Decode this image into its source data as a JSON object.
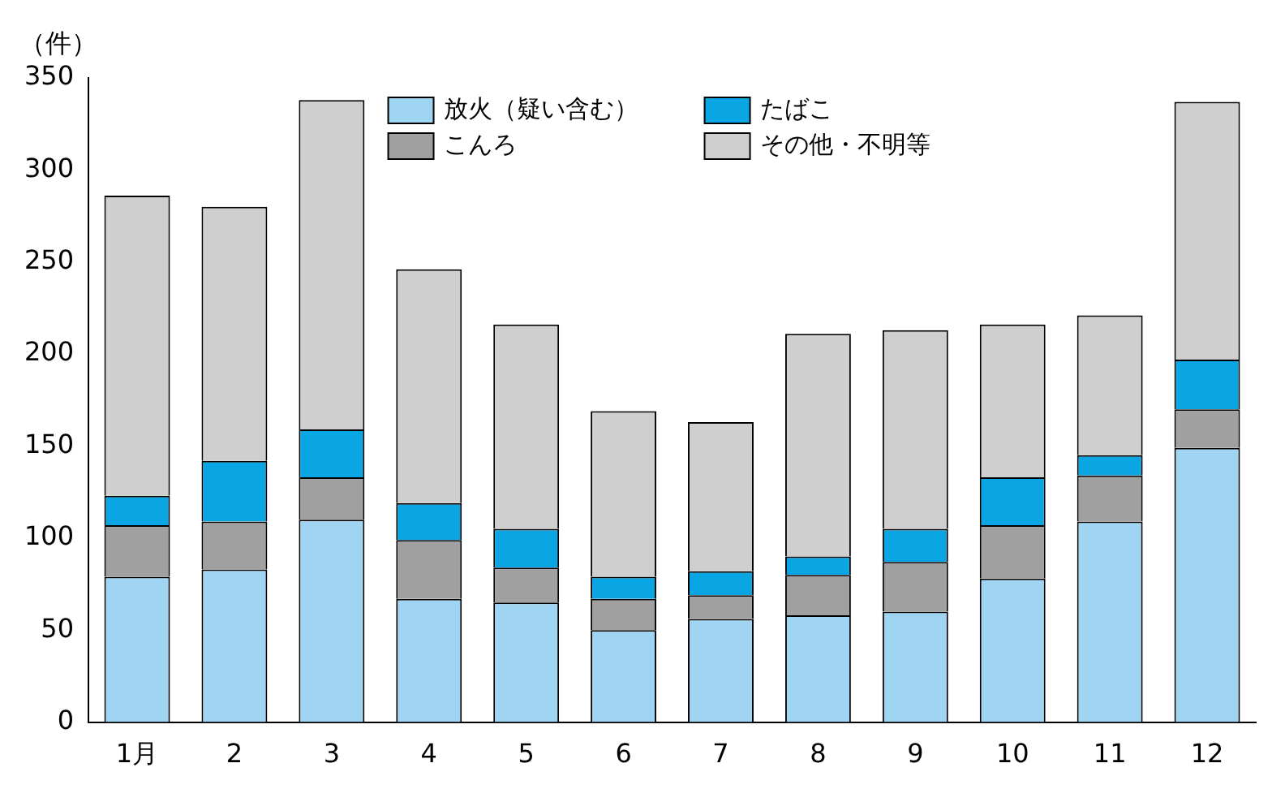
{
  "chart_data": {
    "type": "bar",
    "ylabel": "（件）",
    "categories": [
      "1月",
      "2",
      "3",
      "4",
      "5",
      "6",
      "7",
      "8",
      "9",
      "10",
      "11",
      "12"
    ],
    "stacked": true,
    "ylim": [
      0,
      350
    ],
    "yticks": [
      0,
      50,
      100,
      150,
      200,
      250,
      300,
      350
    ],
    "grid": false,
    "legend": "top",
    "series": [
      {
        "name": "放火（疑い含む）",
        "color": "#9fd4f2",
        "values": [
          79,
          83,
          110,
          67,
          65,
          50,
          56,
          58,
          60,
          78,
          109,
          149
        ]
      },
      {
        "name": "こんろ",
        "color": "#a0a0a0",
        "values": [
          28,
          26,
          23,
          32,
          19,
          17,
          13,
          22,
          27,
          29,
          25,
          21
        ]
      },
      {
        "name": "たばこ",
        "color": "#0aa5e3",
        "values": [
          16,
          33,
          26,
          20,
          21,
          12,
          13,
          10,
          18,
          26,
          11,
          27
        ]
      },
      {
        "name": "その他・不明等",
        "color": "#cfcfcf",
        "values": [
          163,
          138,
          179,
          127,
          111,
          90,
          81,
          121,
          108,
          83,
          76,
          140
        ]
      }
    ]
  }
}
